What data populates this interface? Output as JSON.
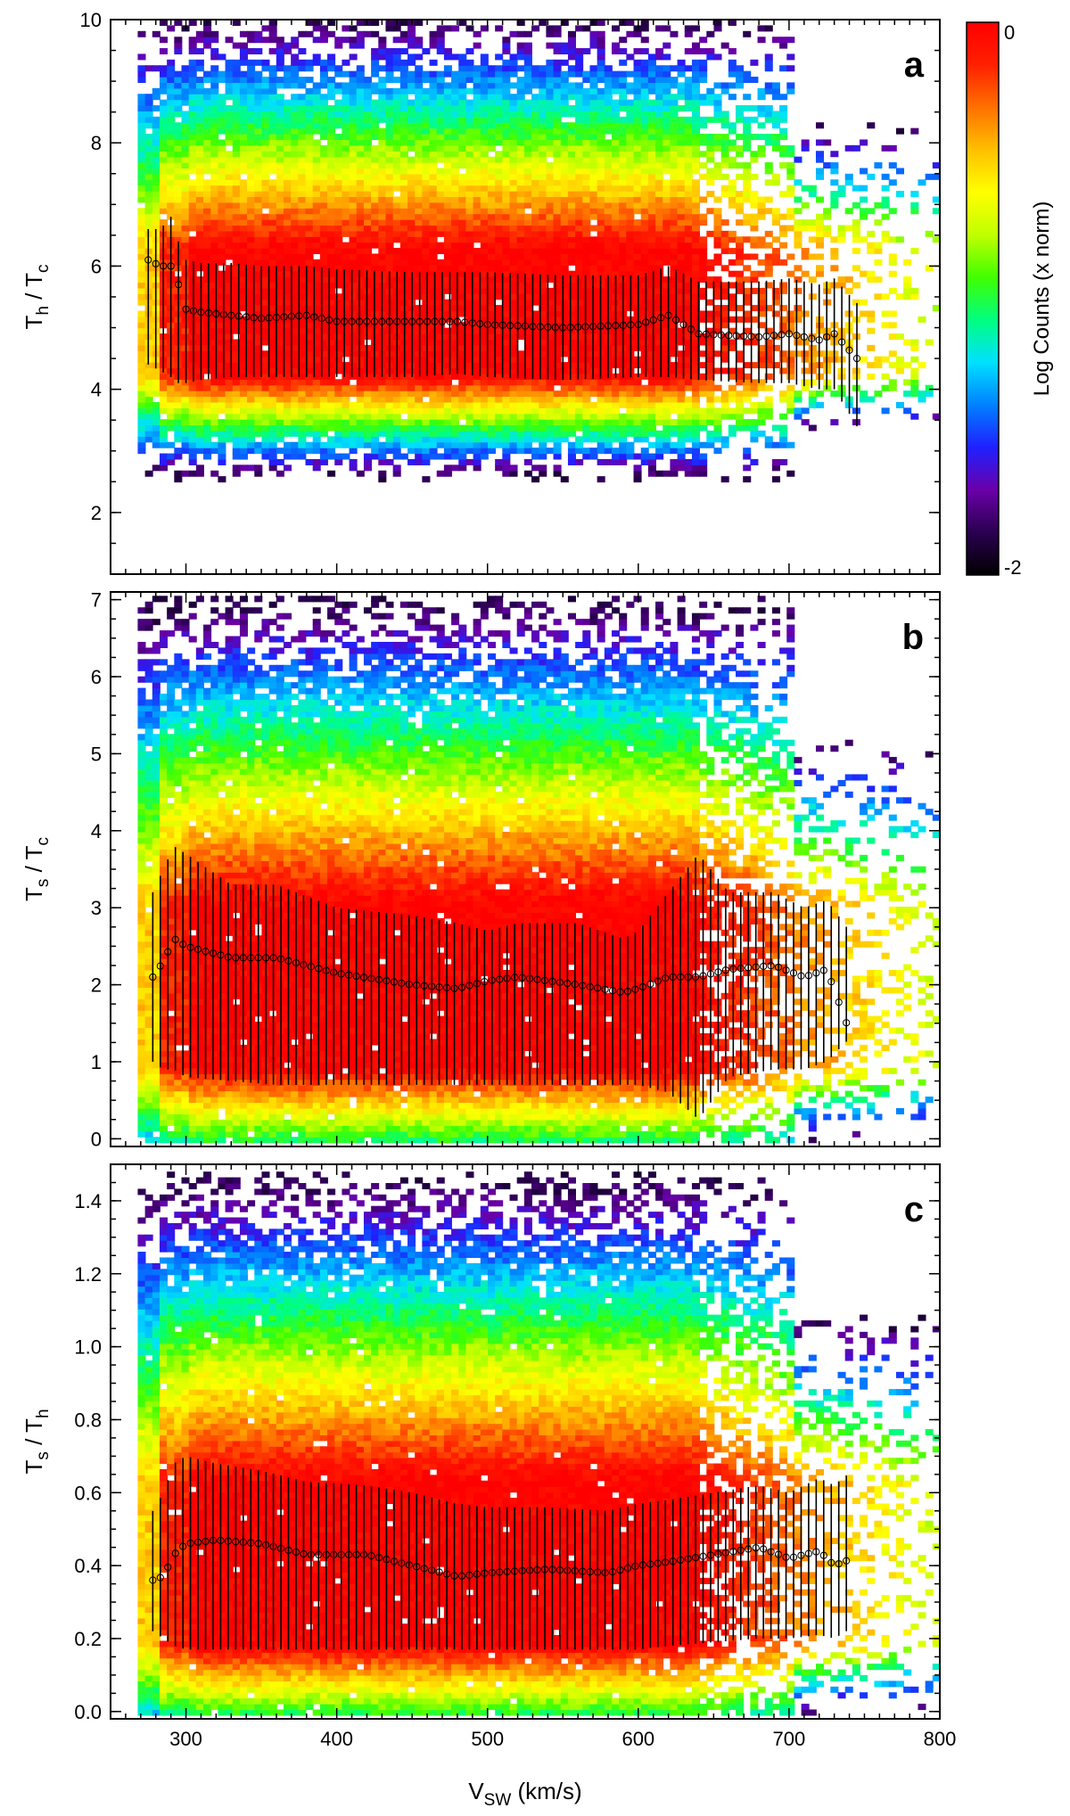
{
  "colorbar": {
    "label": "Log Counts (x norm)",
    "max_label": "0",
    "min_label": "-2",
    "range": [
      -2,
      0
    ],
    "colormap": [
      "#000000",
      "#2a0050",
      "#6a00a8",
      "#2020ff",
      "#0080ff",
      "#00e0ff",
      "#00ff80",
      "#40ff00",
      "#c0ff00",
      "#ffff00",
      "#ffc000",
      "#ff7000",
      "#ff2000",
      "#ff0000"
    ]
  },
  "x_axis": {
    "label_main": "V",
    "label_sub": "SW",
    "label_unit": " (km/s)",
    "range": [
      250,
      800
    ],
    "ticks": [
      300,
      400,
      500,
      600,
      700,
      800
    ],
    "tick_labels": [
      "300",
      "400",
      "500",
      "600",
      "700",
      "800"
    ]
  },
  "chart_data": [
    {
      "type": "heatmap",
      "panel": "a",
      "ylabel": {
        "n1": "T",
        "s1": "h",
        "n2": "T",
        "s2": "c"
      },
      "ylim": [
        1,
        10
      ],
      "yticks": [
        2,
        4,
        6,
        8,
        10
      ],
      "ytick_labels": [
        "2",
        "4",
        "6",
        "8",
        "10"
      ],
      "heatmap": {
        "y_start": 1.2,
        "y_end": 10,
        "core_low": 4.2,
        "core_high": 6.2
      },
      "median": {
        "v": [
          275,
          283,
          290,
          295,
          300,
          310,
          330,
          350,
          380,
          400,
          450,
          480,
          500,
          550,
          600,
          620,
          640,
          680,
          700,
          720,
          730,
          745
        ],
        "y": [
          6.1,
          6.0,
          6.0,
          5.7,
          5.3,
          5.25,
          5.2,
          5.15,
          5.2,
          5.1,
          5.1,
          5.1,
          5.05,
          5.0,
          5.05,
          5.2,
          4.9,
          4.85,
          4.9,
          4.8,
          4.9,
          4.5
        ],
        "lo": [
          4.4,
          4.3,
          4.2,
          4.1,
          4.1,
          4.15,
          4.2,
          4.2,
          4.2,
          4.2,
          4.2,
          4.25,
          4.2,
          4.15,
          4.2,
          4.2,
          4.15,
          4.1,
          4.1,
          4.0,
          4.0,
          3.4
        ],
        "hi": [
          6.6,
          6.6,
          6.8,
          6.4,
          6.1,
          6.05,
          6.05,
          6.0,
          6.0,
          5.95,
          5.9,
          5.9,
          5.9,
          5.85,
          5.85,
          6.0,
          5.75,
          5.75,
          5.8,
          5.7,
          5.8,
          5.4
        ]
      }
    },
    {
      "type": "heatmap",
      "panel": "b",
      "ylabel": {
        "n1": "T",
        "s1": "s",
        "n2": "T",
        "s2": "c"
      },
      "ylim": [
        -0.1,
        7.1
      ],
      "yticks": [
        0,
        1,
        2,
        3,
        4,
        5,
        6,
        7
      ],
      "ytick_labels": [
        "0",
        "1",
        "2",
        "3",
        "4",
        "5",
        "6",
        "7"
      ],
      "heatmap": {
        "y_start": -0.05,
        "y_end": 7.05,
        "core_low": 0.9,
        "core_high": 3.0
      },
      "median": {
        "v": [
          278,
          285,
          292,
          300,
          330,
          360,
          400,
          450,
          480,
          500,
          520,
          560,
          590,
          600,
          620,
          640,
          660,
          690,
          710,
          725,
          740
        ],
        "y": [
          2.1,
          2.3,
          2.6,
          2.5,
          2.35,
          2.35,
          2.15,
          2.0,
          1.95,
          2.05,
          2.1,
          2.0,
          1.9,
          1.95,
          2.1,
          2.1,
          2.2,
          2.25,
          2.1,
          2.2,
          1.4
        ],
        "lo": [
          1.0,
          0.9,
          0.9,
          0.8,
          0.75,
          0.7,
          0.7,
          0.7,
          0.7,
          0.7,
          0.7,
          0.7,
          0.7,
          0.7,
          0.6,
          0.25,
          0.8,
          0.9,
          0.9,
          1.0,
          1.3
        ],
        "hi": [
          3.2,
          3.5,
          3.8,
          3.7,
          3.3,
          3.3,
          3.0,
          2.9,
          2.8,
          2.7,
          2.8,
          2.8,
          2.6,
          2.7,
          3.2,
          3.7,
          3.2,
          3.2,
          3.0,
          3.1,
          2.7
        ]
      }
    },
    {
      "type": "heatmap",
      "panel": "c",
      "ylabel": {
        "n1": "T",
        "s1": "s",
        "n2": "T",
        "s2": "h"
      },
      "ylim": [
        -0.02,
        1.5
      ],
      "yticks": [
        0.0,
        0.2,
        0.4,
        0.6,
        0.8,
        1.0,
        1.2,
        1.4
      ],
      "ytick_labels": [
        "0.0",
        "0.2",
        "0.4",
        "0.6",
        "0.8",
        "1.0",
        "1.2",
        "1.4"
      ],
      "heatmap": {
        "y_start": -0.01,
        "y_end": 1.48,
        "core_low": 0.18,
        "core_high": 0.62
      },
      "median": {
        "v": [
          278,
          285,
          292,
          300,
          320,
          350,
          380,
          420,
          450,
          480,
          500,
          540,
          580,
          600,
          620,
          650,
          680,
          700,
          720,
          730,
          742
        ],
        "y": [
          0.36,
          0.37,
          0.43,
          0.46,
          0.47,
          0.46,
          0.43,
          0.43,
          0.4,
          0.37,
          0.38,
          0.39,
          0.38,
          0.4,
          0.41,
          0.43,
          0.45,
          0.42,
          0.44,
          0.4,
          0.42
        ],
        "lo": [
          0.22,
          0.2,
          0.18,
          0.17,
          0.17,
          0.17,
          0.17,
          0.17,
          0.17,
          0.17,
          0.17,
          0.17,
          0.17,
          0.17,
          0.18,
          0.19,
          0.2,
          0.2,
          0.21,
          0.2,
          0.23
        ],
        "hi": [
          0.55,
          0.6,
          0.68,
          0.7,
          0.68,
          0.66,
          0.63,
          0.62,
          0.6,
          0.57,
          0.56,
          0.56,
          0.55,
          0.57,
          0.58,
          0.6,
          0.62,
          0.6,
          0.64,
          0.62,
          0.66
        ]
      }
    }
  ]
}
